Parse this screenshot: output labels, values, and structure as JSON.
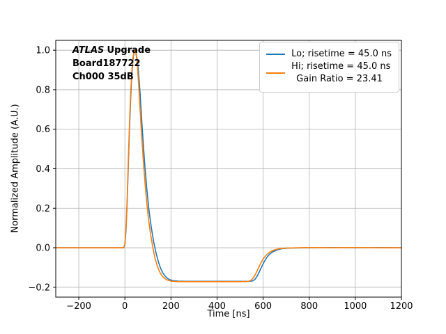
{
  "figure": {
    "background": "#ffffff",
    "grid_color": "#b0b0b0",
    "axis_color": "#000000"
  },
  "chart_data": {
    "type": "line",
    "title": "",
    "xlabel": "Time [ns]",
    "ylabel": "Normalized Amplitude (A.U.)",
    "xlim": [
      -300,
      1200
    ],
    "ylim": [
      -0.25,
      1.05
    ],
    "grid": true,
    "legend_position": "upper right",
    "xticks": [
      {
        "v": -200,
        "label": "−200"
      },
      {
        "v": 0,
        "label": "0"
      },
      {
        "v": 200,
        "label": "200"
      },
      {
        "v": 400,
        "label": "400"
      },
      {
        "v": 600,
        "label": "600"
      },
      {
        "v": 800,
        "label": "800"
      },
      {
        "v": 1000,
        "label": "1000"
      },
      {
        "v": 1200,
        "label": "1200"
      }
    ],
    "yticks": [
      {
        "v": -0.2,
        "label": "−0.2"
      },
      {
        "v": 0.0,
        "label": "0.0"
      },
      {
        "v": 0.2,
        "label": "0.2"
      },
      {
        "v": 0.4,
        "label": "0.4"
      },
      {
        "v": 0.6,
        "label": "0.6"
      },
      {
        "v": 0.8,
        "label": "0.8"
      },
      {
        "v": 1.0,
        "label": "1.0"
      }
    ],
    "annotation": {
      "line1_italic": "ATLAS",
      "line1_bold": "Upgrade",
      "line2": "Board187722",
      "line3": "Ch000 35dB"
    },
    "legend": {
      "entries": [
        {
          "name": "Lo",
          "color": "#1f77b4",
          "label": "Lo; risetime = 45.0 ns",
          "label2": ""
        },
        {
          "name": "Hi",
          "color": "#ff7f0e",
          "label": "Hi; risetime = 45.0 ns",
          "label2": "Gain Ratio = 23.41"
        }
      ]
    },
    "series": [
      {
        "name": "Lo",
        "color": "#1f77b4",
        "points": [
          [
            -300,
            0
          ],
          [
            -100,
            0
          ],
          [
            -20,
            0
          ],
          [
            -5,
            0
          ],
          [
            0,
            0.015
          ],
          [
            5,
            0.09
          ],
          [
            10,
            0.23
          ],
          [
            15,
            0.42
          ],
          [
            20,
            0.6
          ],
          [
            25,
            0.75
          ],
          [
            30,
            0.87
          ],
          [
            35,
            0.95
          ],
          [
            40,
            0.99
          ],
          [
            46,
            0.995
          ],
          [
            52,
            0.965
          ],
          [
            58,
            0.905
          ],
          [
            65,
            0.8
          ],
          [
            75,
            0.61
          ],
          [
            85,
            0.44
          ],
          [
            95,
            0.3
          ],
          [
            105,
            0.185
          ],
          [
            115,
            0.1
          ],
          [
            125,
            0.03
          ],
          [
            135,
            -0.025
          ],
          [
            145,
            -0.07
          ],
          [
            155,
            -0.104
          ],
          [
            165,
            -0.128
          ],
          [
            175,
            -0.144
          ],
          [
            185,
            -0.155
          ],
          [
            195,
            -0.162
          ],
          [
            210,
            -0.167
          ],
          [
            230,
            -0.169
          ],
          [
            260,
            -0.17
          ],
          [
            300,
            -0.17
          ],
          [
            350,
            -0.17
          ],
          [
            400,
            -0.17
          ],
          [
            450,
            -0.17
          ],
          [
            500,
            -0.17
          ],
          [
            540,
            -0.17
          ],
          [
            555,
            -0.168
          ],
          [
            565,
            -0.159
          ],
          [
            575,
            -0.142
          ],
          [
            585,
            -0.118
          ],
          [
            595,
            -0.093
          ],
          [
            605,
            -0.07
          ],
          [
            615,
            -0.051
          ],
          [
            625,
            -0.036
          ],
          [
            640,
            -0.022
          ],
          [
            660,
            -0.011
          ],
          [
            680,
            -0.005
          ],
          [
            710,
            -0.002
          ],
          [
            750,
            -0.001
          ],
          [
            800,
            0
          ],
          [
            900,
            0.001
          ],
          [
            1000,
            0
          ],
          [
            1100,
            0.001
          ],
          [
            1200,
            0
          ]
        ]
      },
      {
        "name": "Hi",
        "color": "#ff7f0e",
        "points": [
          [
            -300,
            0
          ],
          [
            -100,
            0
          ],
          [
            -20,
            0
          ],
          [
            -5,
            0
          ],
          [
            0,
            0.02
          ],
          [
            5,
            0.1
          ],
          [
            10,
            0.25
          ],
          [
            15,
            0.45
          ],
          [
            20,
            0.63
          ],
          [
            25,
            0.78
          ],
          [
            30,
            0.89
          ],
          [
            35,
            0.96
          ],
          [
            40,
            0.995
          ],
          [
            45,
            1.0
          ],
          [
            50,
            0.97
          ],
          [
            55,
            0.91
          ],
          [
            60,
            0.82
          ],
          [
            70,
            0.62
          ],
          [
            80,
            0.44
          ],
          [
            90,
            0.29
          ],
          [
            100,
            0.17
          ],
          [
            110,
            0.08
          ],
          [
            120,
            0.01
          ],
          [
            130,
            -0.05
          ],
          [
            140,
            -0.09
          ],
          [
            150,
            -0.12
          ],
          [
            160,
            -0.141
          ],
          [
            170,
            -0.153
          ],
          [
            180,
            -0.161
          ],
          [
            190,
            -0.166
          ],
          [
            200,
            -0.169
          ],
          [
            220,
            -0.171
          ],
          [
            250,
            -0.172
          ],
          [
            300,
            -0.172
          ],
          [
            350,
            -0.172
          ],
          [
            400,
            -0.172
          ],
          [
            450,
            -0.172
          ],
          [
            500,
            -0.172
          ],
          [
            530,
            -0.171
          ],
          [
            545,
            -0.167
          ],
          [
            555,
            -0.156
          ],
          [
            565,
            -0.138
          ],
          [
            575,
            -0.114
          ],
          [
            585,
            -0.089
          ],
          [
            595,
            -0.067
          ],
          [
            605,
            -0.049
          ],
          [
            615,
            -0.035
          ],
          [
            630,
            -0.021
          ],
          [
            650,
            -0.01
          ],
          [
            670,
            -0.005
          ],
          [
            700,
            -0.002
          ],
          [
            750,
            0
          ],
          [
            800,
            0.001
          ],
          [
            900,
            0
          ],
          [
            1000,
            0.001
          ],
          [
            1100,
            0
          ],
          [
            1200,
            0
          ]
        ]
      }
    ]
  }
}
